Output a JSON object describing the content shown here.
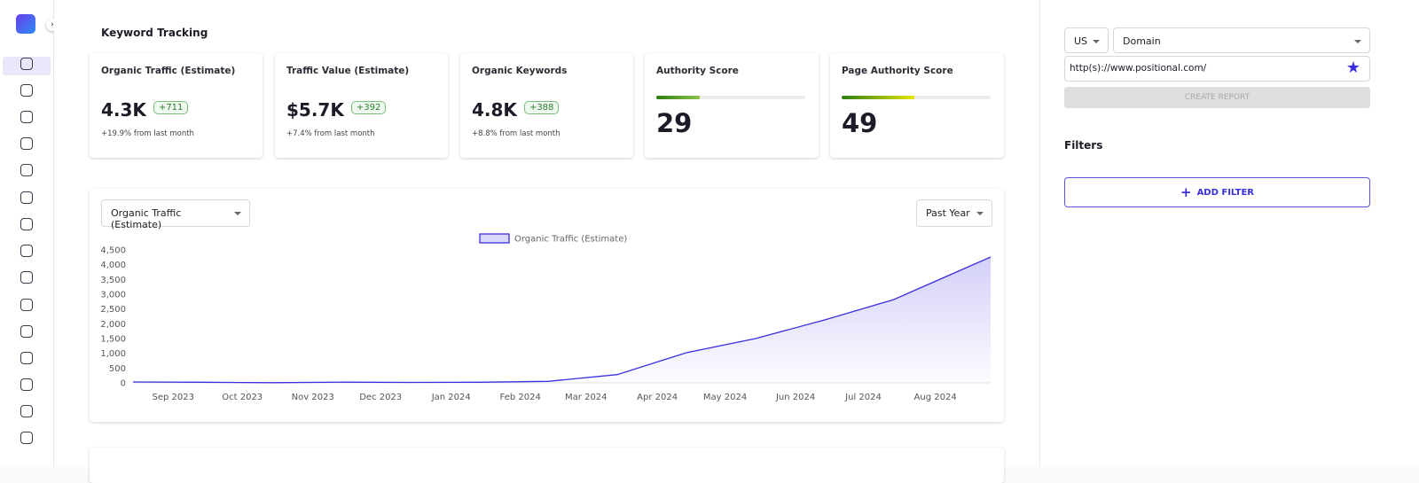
{
  "header": {
    "title": "Keyword Tracking"
  },
  "cards": [
    {
      "title": "Organic Traffic (Estimate)",
      "value": "4.3K",
      "badge": "+711",
      "change": "+19.9% from last month"
    },
    {
      "title": "Traffic Value (Estimate)",
      "value": "$5.7K",
      "badge": "+392",
      "change": "+7.4% from last month"
    },
    {
      "title": "Organic Keywords",
      "value": "4.8K",
      "badge": "+388",
      "change": "+8.8% from last month"
    }
  ],
  "scores": [
    {
      "title": "Authority Score",
      "value": 29
    },
    {
      "title": "Page Authority Score",
      "value": 49
    }
  ],
  "chart_controls": {
    "metric": "Organic Traffic (Estimate)",
    "period": "Past Year"
  },
  "chart_data": {
    "type": "area",
    "series": [
      {
        "name": "Organic Traffic (Estimate)",
        "color": "#3a2fe0",
        "x": [
          0,
          1,
          2,
          3,
          4,
          5,
          6,
          7,
          8,
          9,
          10,
          11,
          12.4
        ],
        "values": [
          30,
          20,
          5,
          25,
          15,
          20,
          50,
          280,
          1020,
          1500,
          2130,
          2820,
          4260
        ]
      }
    ],
    "xlim": [
      0,
      12.4
    ],
    "xticks": [
      {
        "value": 0.58,
        "label": "Sep 2023"
      },
      {
        "value": 1.58,
        "label": "Oct 2023"
      },
      {
        "value": 2.6,
        "label": "Nov 2023"
      },
      {
        "value": 3.58,
        "label": "Dec 2023"
      },
      {
        "value": 4.6,
        "label": "Jan 2024"
      },
      {
        "value": 5.6,
        "label": "Feb 2024"
      },
      {
        "value": 6.55,
        "label": "Mar 2024"
      },
      {
        "value": 7.58,
        "label": "Apr 2024"
      },
      {
        "value": 8.56,
        "label": "May 2024"
      },
      {
        "value": 9.58,
        "label": "Jun 2024"
      },
      {
        "value": 10.56,
        "label": "Jul 2024"
      },
      {
        "value": 11.6,
        "label": "Aug 2024"
      }
    ],
    "ylim": [
      0,
      4500
    ],
    "yticks": [
      0,
      500,
      {
        "value": 1000,
        "label": "1,000"
      },
      {
        "value": 1500,
        "label": "1,500"
      },
      {
        "value": 2000,
        "label": "2,000"
      },
      {
        "value": 2500,
        "label": "2,500"
      },
      {
        "value": 3000,
        "label": "3,000"
      },
      {
        "value": 3500,
        "label": "3,500"
      },
      {
        "value": 4000,
        "label": "4,000"
      },
      {
        "value": 4500,
        "label": "4,500"
      }
    ],
    "legend": "top"
  },
  "panel": {
    "country": "US",
    "search_type": "Domain",
    "url": "http(s)://www.positional.com/",
    "create_button": "CREATE REPORT",
    "filters_title": "Filters",
    "add_filter": "ADD FILTER"
  }
}
